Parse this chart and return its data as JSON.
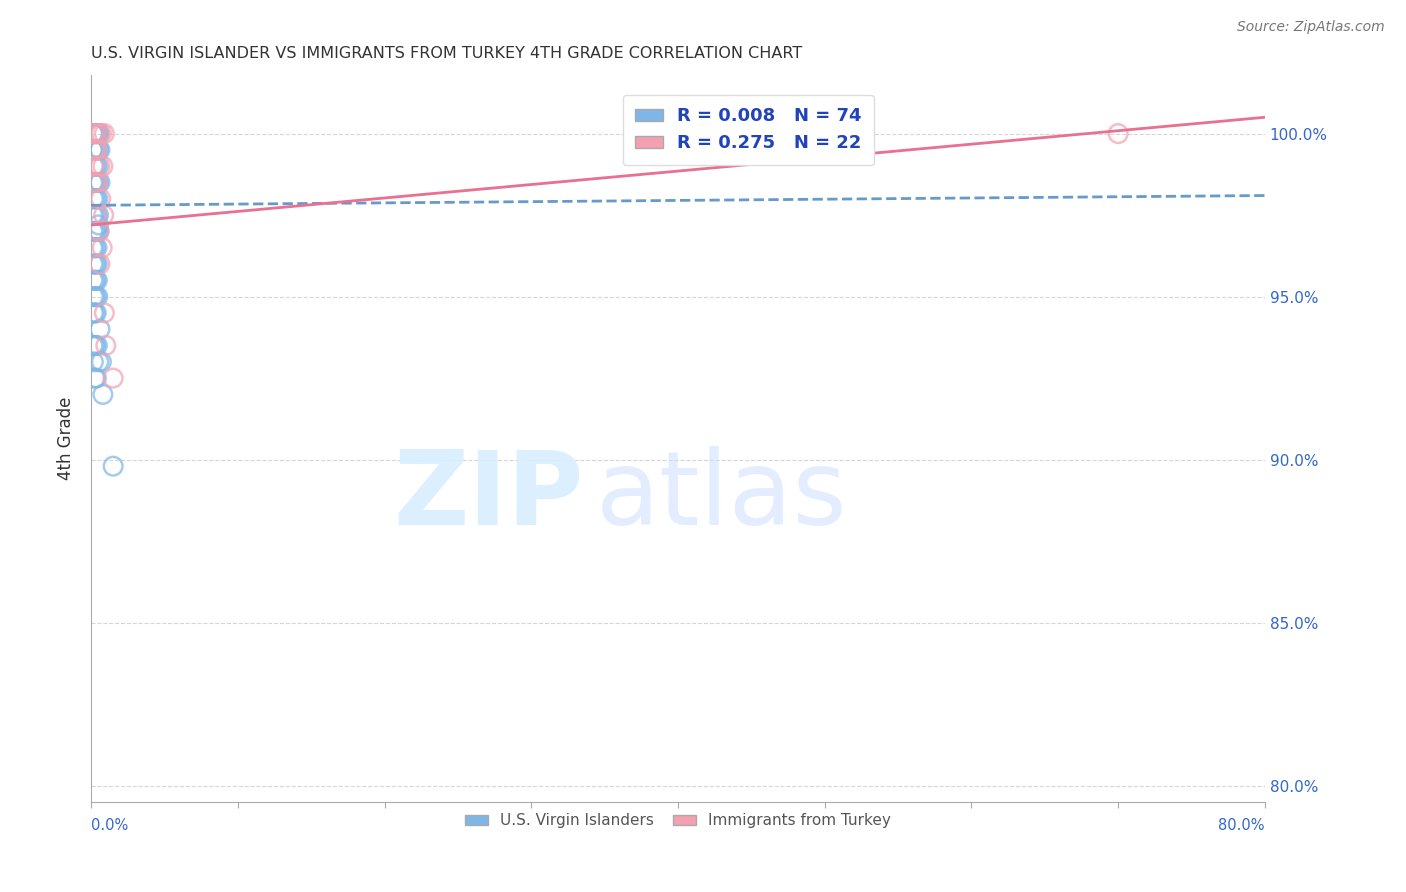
{
  "title": "U.S. VIRGIN ISLANDER VS IMMIGRANTS FROM TURKEY 4TH GRADE CORRELATION CHART",
  "source": "Source: ZipAtlas.com",
  "ylabel": "4th Grade",
  "yticks": [
    80.0,
    85.0,
    90.0,
    95.0,
    100.0
  ],
  "xlim": [
    0.0,
    80.0
  ],
  "ylim": [
    79.5,
    101.8
  ],
  "blue_R": 0.008,
  "blue_N": 74,
  "pink_R": 0.275,
  "pink_N": 22,
  "blue_color": "#7EB6E8",
  "pink_color": "#F4A0B0",
  "blue_line_color": "#6699CC",
  "pink_line_color": "#E87090",
  "legend_R_color": "#2244BB",
  "background_color": "#FFFFFF",
  "grid_color": "#CCCCCC",
  "blue_trendline_x": [
    0,
    80
  ],
  "blue_trendline_y": [
    97.8,
    98.1
  ],
  "pink_trendline_x": [
    0,
    80
  ],
  "pink_trendline_y": [
    97.2,
    100.5
  ],
  "blue_scatter_x": [
    0.1,
    0.15,
    0.2,
    0.25,
    0.3,
    0.35,
    0.4,
    0.45,
    0.5,
    0.55,
    0.1,
    0.2,
    0.3,
    0.4,
    0.5,
    0.6,
    0.15,
    0.25,
    0.35,
    0.45,
    0.1,
    0.2,
    0.3,
    0.4,
    0.5,
    0.6,
    0.15,
    0.25,
    0.35,
    0.45,
    0.1,
    0.2,
    0.3,
    0.4,
    0.5,
    0.12,
    0.22,
    0.32,
    0.42,
    0.52,
    0.1,
    0.2,
    0.3,
    0.4,
    0.12,
    0.22,
    0.32,
    0.42,
    0.12,
    0.22,
    0.32,
    0.42,
    0.15,
    0.25,
    0.35,
    0.45,
    0.15,
    0.25,
    0.35,
    0.6,
    0.12,
    0.22,
    0.32,
    0.42,
    0.52,
    0.7,
    0.15,
    0.25,
    0.35,
    0.8,
    0.1,
    0.2,
    0.5,
    1.5
  ],
  "blue_scatter_y": [
    100.0,
    100.0,
    100.0,
    100.0,
    100.0,
    100.0,
    100.0,
    100.0,
    100.0,
    100.0,
    99.5,
    99.5,
    99.5,
    99.5,
    99.5,
    99.5,
    99.0,
    99.0,
    99.0,
    99.0,
    98.5,
    98.5,
    98.5,
    98.5,
    98.5,
    98.5,
    98.0,
    98.0,
    98.0,
    98.0,
    97.5,
    97.5,
    97.5,
    97.5,
    97.5,
    97.0,
    97.0,
    97.0,
    97.0,
    97.0,
    96.5,
    96.5,
    96.5,
    96.5,
    96.0,
    96.0,
    96.0,
    96.0,
    95.5,
    95.5,
    95.5,
    95.5,
    95.0,
    95.0,
    95.0,
    95.0,
    94.5,
    94.5,
    94.5,
    94.0,
    93.5,
    93.5,
    93.5,
    93.5,
    93.0,
    93.0,
    93.0,
    92.5,
    92.5,
    92.0,
    99.5,
    98.5,
    97.2,
    89.8
  ],
  "pink_scatter_x": [
    0.15,
    0.3,
    0.5,
    0.7,
    0.9,
    0.2,
    0.4,
    0.6,
    0.8,
    0.25,
    0.45,
    0.65,
    0.85,
    0.35,
    0.55,
    0.75,
    1.0,
    0.2,
    0.6,
    0.9,
    1.5,
    70.0
  ],
  "pink_scatter_y": [
    100.0,
    100.0,
    100.0,
    100.0,
    100.0,
    99.5,
    99.5,
    99.0,
    99.0,
    98.5,
    98.5,
    98.0,
    97.5,
    97.5,
    97.0,
    96.5,
    93.5,
    99.0,
    96.0,
    94.5,
    92.5,
    100.0
  ]
}
